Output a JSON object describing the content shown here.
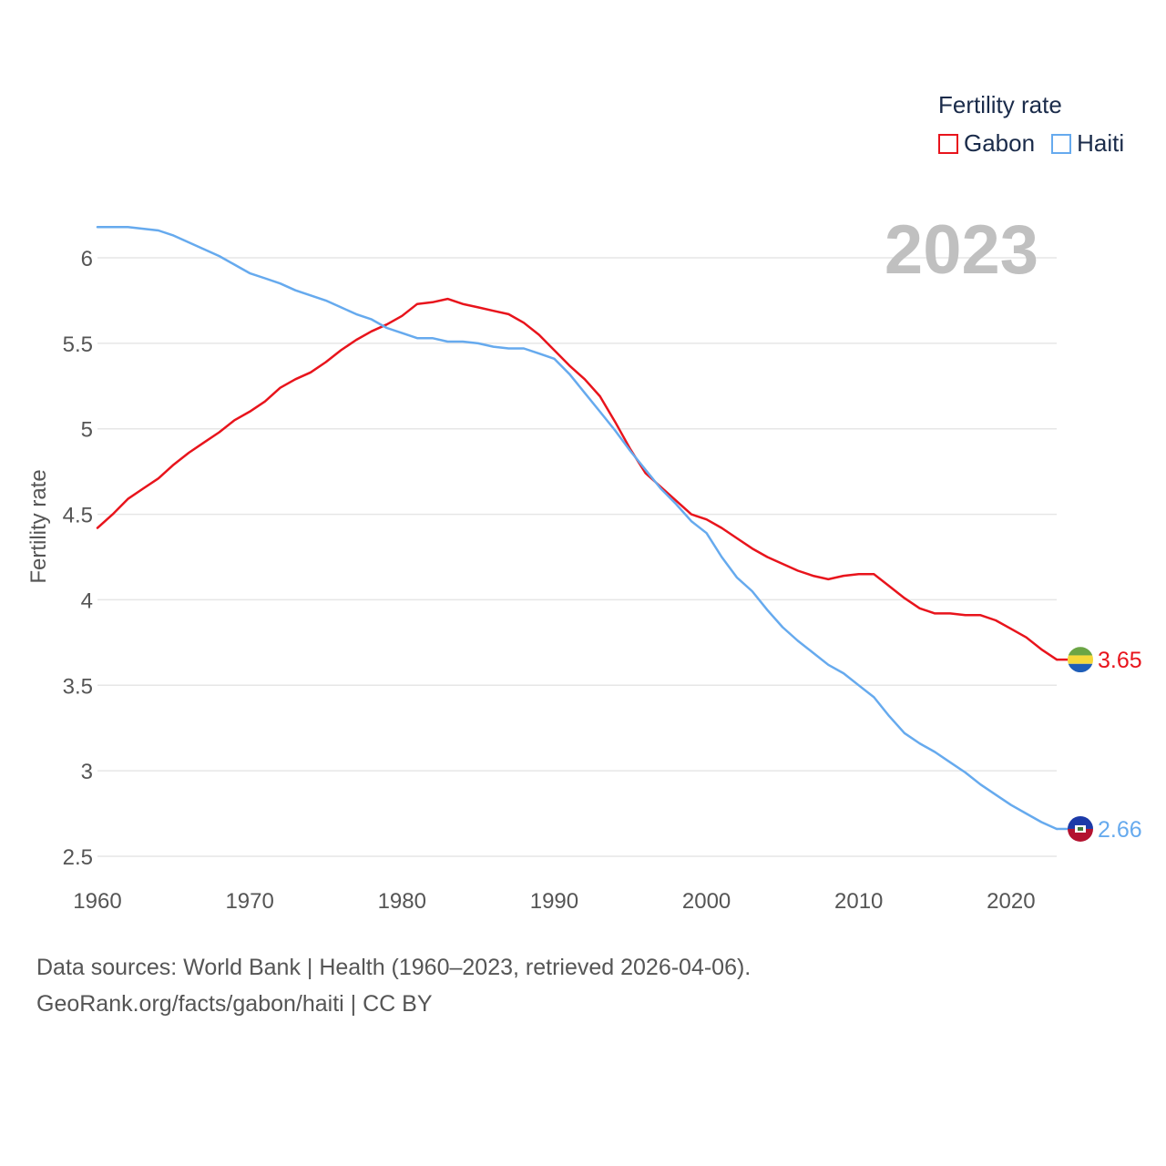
{
  "legend": {
    "title": "Fertility rate",
    "items": [
      {
        "label": "Gabon",
        "color": "#e8141c"
      },
      {
        "label": "Haiti",
        "color": "#66aaee"
      }
    ]
  },
  "year_badge": "2023",
  "footer": {
    "line1": "Data sources: World Bank | Health (1960–2023, retrieved 2026-04-06).",
    "line2": "GeoRank.org/facts/gabon/haiti | CC BY"
  },
  "chart_data": {
    "type": "line",
    "title": "",
    "xlabel": "",
    "ylabel": "Fertility rate",
    "xlim": [
      1960,
      2023
    ],
    "ylim": [
      2.5,
      6.3
    ],
    "x_ticks": [
      1960,
      1970,
      1980,
      1990,
      2000,
      2010,
      2020
    ],
    "y_ticks": [
      2.5,
      3,
      3.5,
      4,
      4.5,
      5,
      5.5,
      6
    ],
    "y_tick_labels": [
      "2.5",
      "3",
      "3.5",
      "4",
      "4.5",
      "5",
      "5.5",
      "6"
    ],
    "grid": true,
    "x": [
      1960,
      1961,
      1962,
      1963,
      1964,
      1965,
      1966,
      1967,
      1968,
      1969,
      1970,
      1971,
      1972,
      1973,
      1974,
      1975,
      1976,
      1977,
      1978,
      1979,
      1980,
      1981,
      1982,
      1983,
      1984,
      1985,
      1986,
      1987,
      1988,
      1989,
      1990,
      1991,
      1992,
      1993,
      1994,
      1995,
      1996,
      1997,
      1998,
      1999,
      2000,
      2001,
      2002,
      2003,
      2004,
      2005,
      2006,
      2007,
      2008,
      2009,
      2010,
      2011,
      2012,
      2013,
      2014,
      2015,
      2016,
      2017,
      2018,
      2019,
      2020,
      2021,
      2022,
      2023
    ],
    "series": [
      {
        "name": "Gabon",
        "color": "#e8141c",
        "end_label": "3.65",
        "values": [
          4.42,
          4.5,
          4.59,
          4.65,
          4.71,
          4.79,
          4.86,
          4.92,
          4.98,
          5.05,
          5.1,
          5.16,
          5.24,
          5.29,
          5.33,
          5.39,
          5.46,
          5.52,
          5.57,
          5.61,
          5.66,
          5.73,
          5.74,
          5.76,
          5.73,
          5.71,
          5.69,
          5.67,
          5.62,
          5.55,
          5.46,
          5.37,
          5.29,
          5.19,
          5.04,
          4.88,
          4.74,
          4.66,
          4.58,
          4.5,
          4.47,
          4.42,
          4.36,
          4.3,
          4.25,
          4.21,
          4.17,
          4.14,
          4.12,
          4.14,
          4.15,
          4.15,
          4.08,
          4.01,
          3.95,
          3.92,
          3.92,
          3.91,
          3.91,
          3.88,
          3.83,
          3.78,
          3.71,
          3.65
        ]
      },
      {
        "name": "Haiti",
        "color": "#66aaee",
        "end_label": "2.66",
        "values": [
          6.18,
          6.18,
          6.18,
          6.17,
          6.16,
          6.13,
          6.09,
          6.05,
          6.01,
          5.96,
          5.91,
          5.88,
          5.85,
          5.81,
          5.78,
          5.75,
          5.71,
          5.67,
          5.64,
          5.59,
          5.56,
          5.53,
          5.53,
          5.51,
          5.51,
          5.5,
          5.48,
          5.47,
          5.47,
          5.44,
          5.41,
          5.32,
          5.21,
          5.1,
          4.99,
          4.87,
          4.76,
          4.65,
          4.56,
          4.46,
          4.39,
          4.25,
          4.13,
          4.05,
          3.94,
          3.84,
          3.76,
          3.69,
          3.62,
          3.57,
          3.5,
          3.43,
          3.32,
          3.22,
          3.16,
          3.11,
          3.05,
          2.99,
          2.92,
          2.86,
          2.8,
          2.75,
          2.7,
          2.66
        ]
      }
    ]
  }
}
